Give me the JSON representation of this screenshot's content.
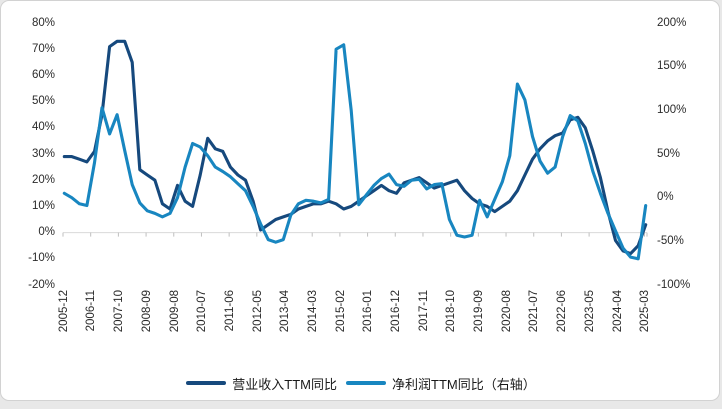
{
  "page": {
    "background": "#e8e8e8",
    "card_background": "#ffffff",
    "border_color": "#d2d2d2",
    "axis_line_color": "#d9d9d9",
    "tick_color": "#bfbfbf",
    "axis_text_color": "#2b2b2b"
  },
  "chart_data": {
    "type": "line",
    "title": "",
    "grid": false,
    "legend_position": "bottom",
    "x_tick_labels": [
      "2005-12",
      "2006-11",
      "2007-10",
      "2008-09",
      "2009-08",
      "2010-07",
      "2011-06",
      "2012-05",
      "2013-04",
      "2014-03",
      "2015-02",
      "2016-01",
      "2016-12",
      "2017-11",
      "2018-10",
      "2019-09",
      "2020-08",
      "2021-07",
      "2022-06",
      "2023-05",
      "2024-04",
      "2025-03"
    ],
    "left_axis": {
      "min": -20,
      "max": 80,
      "tick_labels": [
        "80%",
        "70%",
        "60%",
        "50%",
        "40%",
        "30%",
        "20%",
        "10%",
        "0%",
        "-10%",
        "-20%"
      ]
    },
    "right_axis": {
      "min": -100,
      "max": 200,
      "tick_labels": [
        "200%",
        "150%",
        "100%",
        "50%",
        "0%",
        "-50%",
        "-100%"
      ]
    },
    "categories": [
      "2005-12",
      "2006-03",
      "2006-06",
      "2006-09",
      "2006-12",
      "2007-03",
      "2007-06",
      "2007-09",
      "2007-12",
      "2008-03",
      "2008-06",
      "2008-09",
      "2008-12",
      "2009-03",
      "2009-06",
      "2009-09",
      "2009-12",
      "2010-03",
      "2010-06",
      "2010-09",
      "2010-12",
      "2011-03",
      "2011-06",
      "2011-09",
      "2011-12",
      "2012-03",
      "2012-06",
      "2012-09",
      "2012-12",
      "2013-03",
      "2013-06",
      "2013-09",
      "2013-12",
      "2014-03",
      "2014-06",
      "2014-09",
      "2014-12",
      "2015-03",
      "2015-06",
      "2015-09",
      "2015-12",
      "2016-03",
      "2016-06",
      "2016-09",
      "2016-12",
      "2017-03",
      "2017-06",
      "2017-09",
      "2017-12",
      "2018-03",
      "2018-06",
      "2018-09",
      "2018-12",
      "2019-03",
      "2019-06",
      "2019-09",
      "2019-12",
      "2020-03",
      "2020-06",
      "2020-09",
      "2020-12",
      "2021-03",
      "2021-06",
      "2021-09",
      "2021-12",
      "2022-03",
      "2022-06",
      "2022-09",
      "2022-12",
      "2023-03",
      "2023-06",
      "2023-09",
      "2023-12",
      "2024-03",
      "2024-06",
      "2024-09",
      "2024-12",
      "2025-03"
    ],
    "series": [
      {
        "name": "营业收入TTM同比",
        "axis": "left",
        "color": "#16497d",
        "values": [
          29,
          29,
          28,
          27,
          31,
          45,
          71,
          73,
          73,
          65,
          24,
          22,
          20,
          11,
          9,
          18,
          12,
          10,
          22,
          36,
          32,
          31,
          25,
          22,
          20,
          12,
          1,
          3,
          5,
          6,
          7,
          9,
          10,
          11,
          11,
          12,
          11,
          9,
          10,
          12,
          14,
          16,
          18,
          16,
          15,
          19,
          20,
          21,
          19,
          17,
          18,
          19,
          20,
          16,
          13,
          11,
          10,
          8,
          10,
          12,
          16,
          22,
          28,
          32,
          35,
          37,
          38,
          43,
          44,
          40,
          31,
          21,
          8,
          -3,
          -7,
          -8,
          -5,
          3
        ]
      },
      {
        "name": "净利润TTM同比（右轴）",
        "axis": "right",
        "color": "#1886c0",
        "values": [
          5,
          0,
          -7,
          -9,
          40,
          103,
          73,
          95,
          54,
          15,
          -6,
          -15,
          -18,
          -22,
          -18,
          0,
          35,
          62,
          58,
          48,
          35,
          30,
          24,
          16,
          8,
          -10,
          -30,
          -48,
          -51,
          -48,
          -20,
          -7,
          -3,
          -4,
          -6,
          -2,
          170,
          175,
          100,
          -8,
          3,
          14,
          22,
          27,
          15,
          13,
          20,
          21,
          10,
          15,
          16,
          -25,
          -43,
          -45,
          -43,
          -3,
          -22,
          -2,
          18,
          48,
          130,
          112,
          70,
          42,
          28,
          35,
          70,
          94,
          88,
          62,
          30,
          5,
          -18,
          -38,
          -58,
          -68,
          -70,
          -9
        ]
      }
    ]
  },
  "legend": {
    "revenue_label": "营业收入TTM同比",
    "net_profit_label": "净利润TTM同比（右轴）"
  }
}
